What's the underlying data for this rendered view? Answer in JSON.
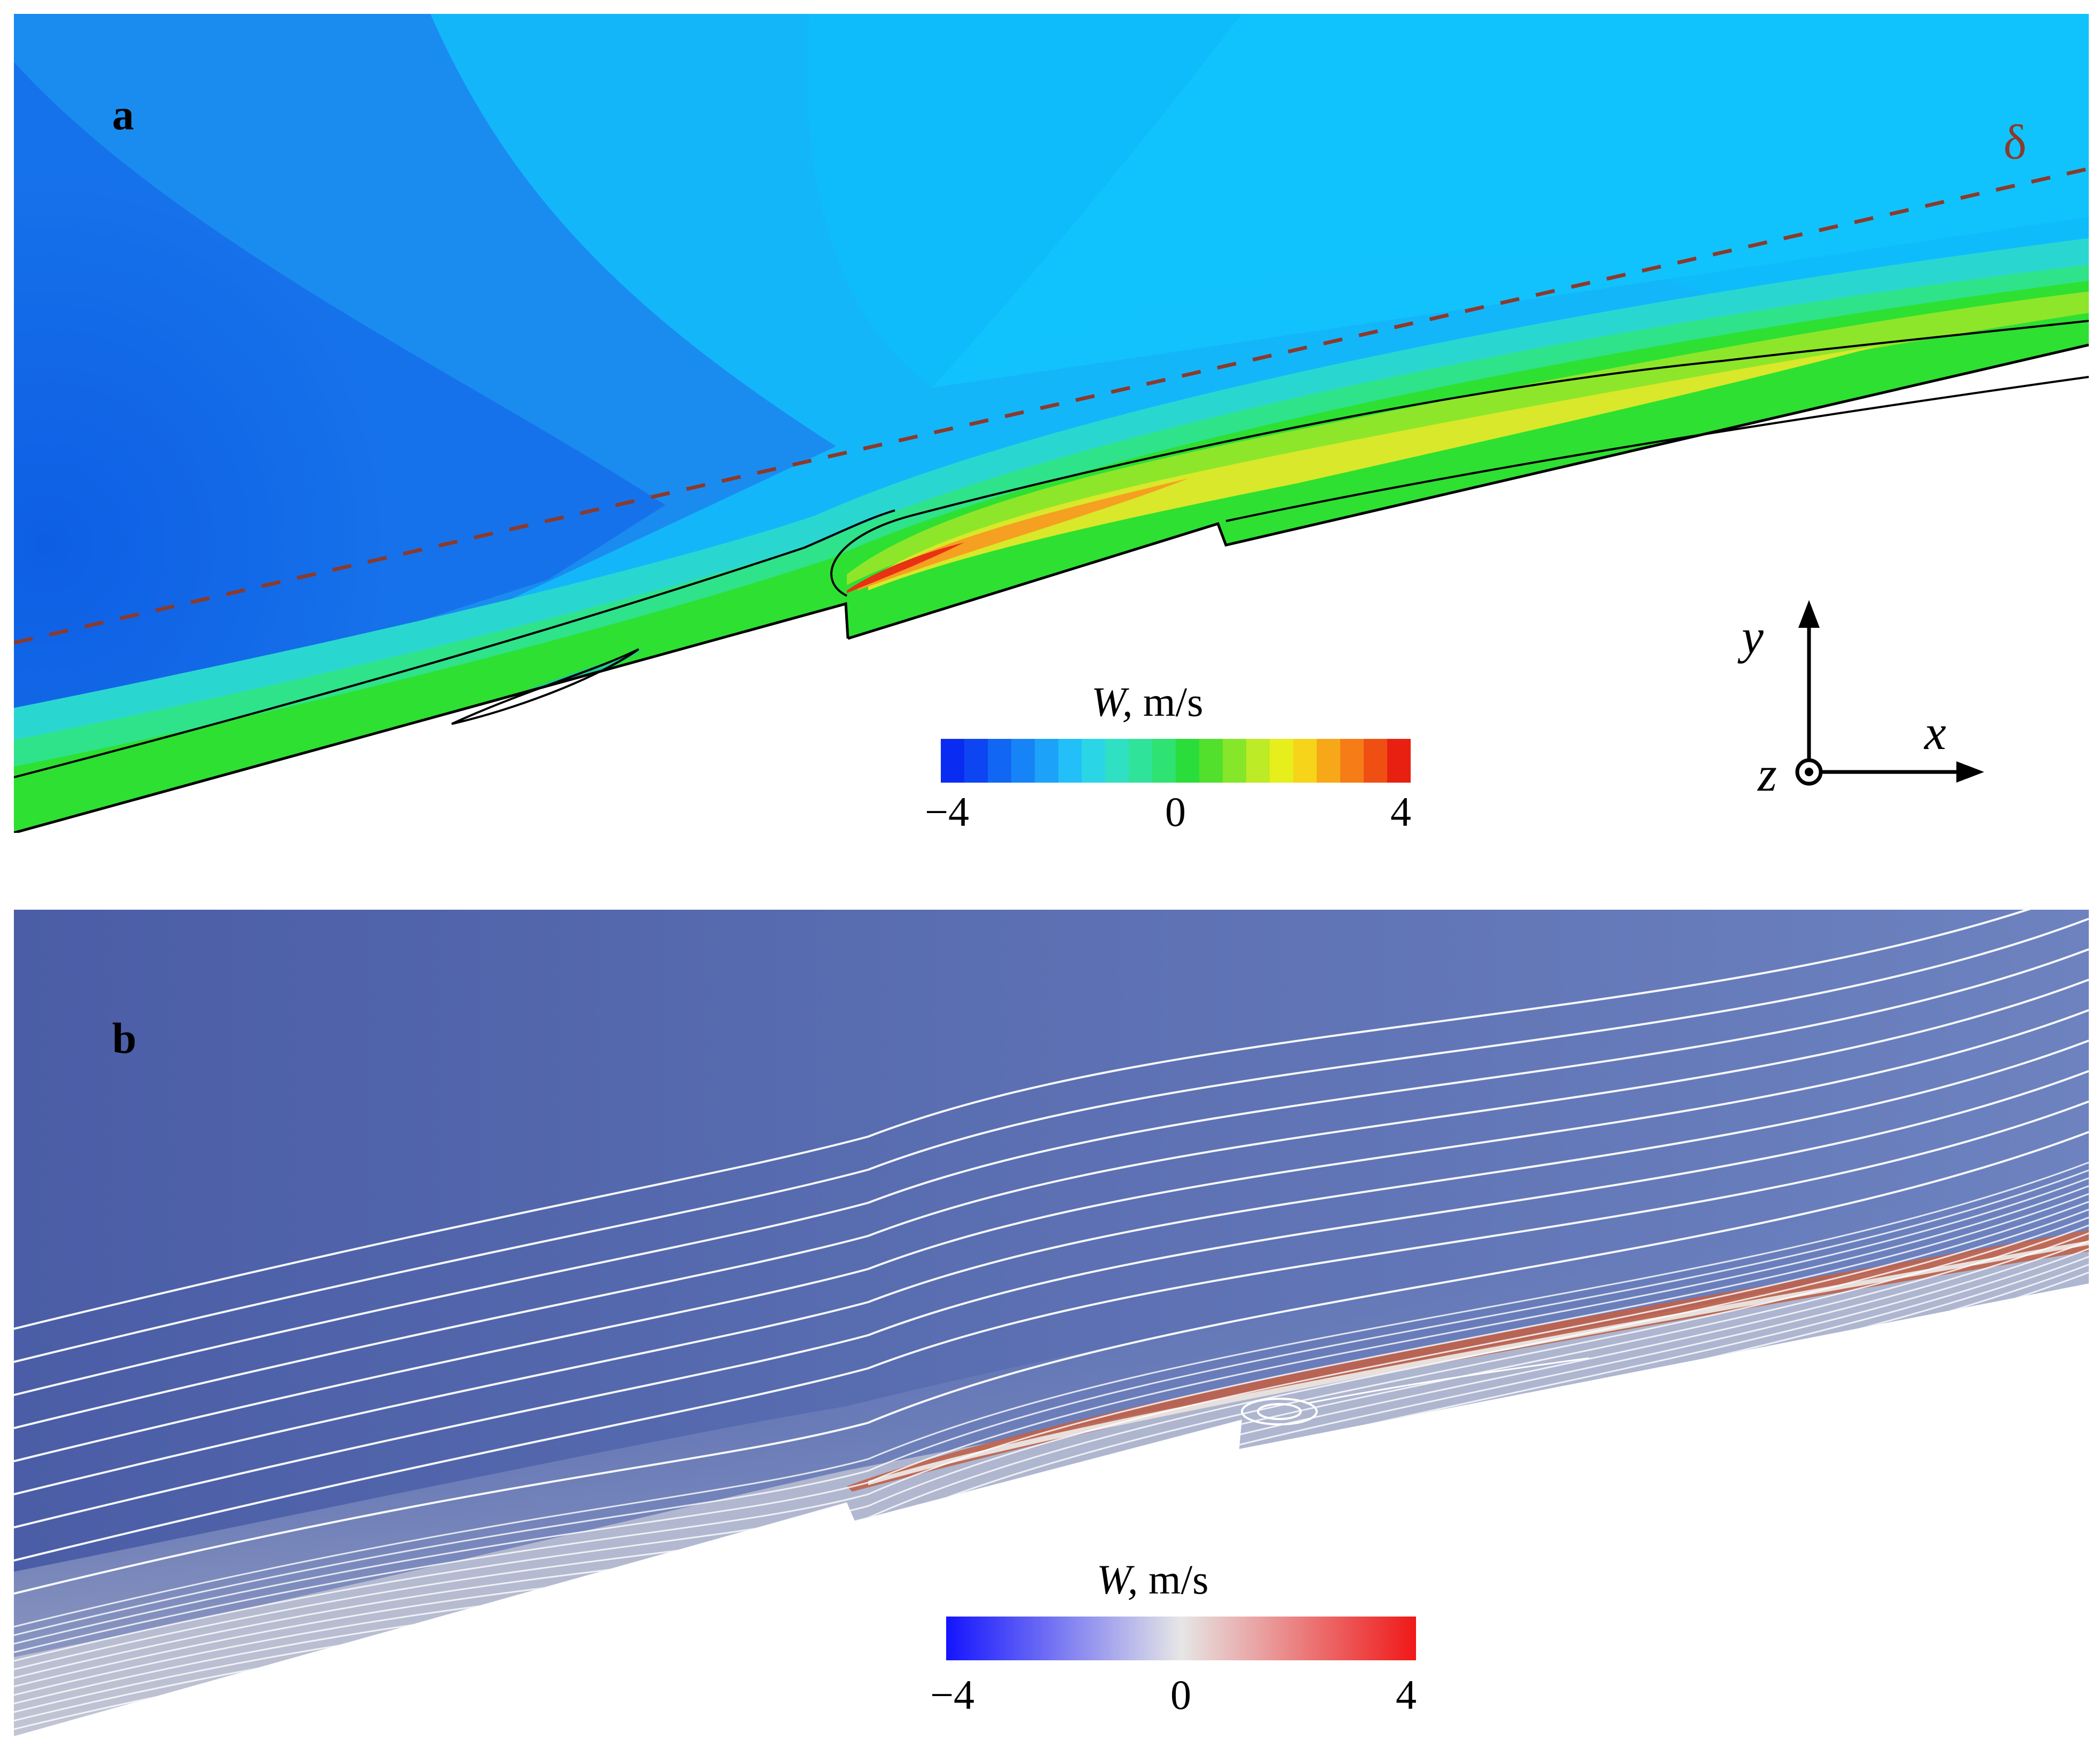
{
  "panel_a": {
    "letter": "a",
    "delta_label": "δ",
    "colorbar": {
      "variable": "W,",
      "unit": "m/s",
      "ticks": [
        "−4",
        "0",
        "4"
      ],
      "range": [
        -4,
        4
      ],
      "levels": 20,
      "colors": [
        "#0a2cf2",
        "#0d45f2",
        "#1166f4",
        "#1684f6",
        "#1ca2f8",
        "#22bff9",
        "#2ad6e6",
        "#2fe0c2",
        "#2fe39a",
        "#2ee372",
        "#2bdd3a",
        "#52e02c",
        "#86e62a",
        "#bdeb26",
        "#e6ef1c",
        "#f6d41a",
        "#f7a818",
        "#f57c16",
        "#f04f14",
        "#e82012"
      ]
    },
    "axes_triad": {
      "x": "x",
      "y": "y",
      "z": "z"
    },
    "field_colors": {
      "deep_blue": "#1270e6",
      "mid_blue": "#1a8cf0",
      "light_blue": "#14b0f8",
      "cyan": "#13c3fb",
      "green": "#2ee032",
      "yellow": "#d9e82a",
      "orange": "#f5a020",
      "red": "#e83214",
      "delta_line": "#8b3a2c"
    }
  },
  "panel_b": {
    "letter": "b",
    "colorbar": {
      "variable": "W,",
      "unit": "m/s",
      "ticks": [
        "−4",
        "0",
        "4"
      ],
      "range": [
        -4,
        4
      ],
      "colors": [
        "#1414ff",
        "#e6e6e6",
        "#f01818"
      ]
    },
    "field_colors": {
      "background_left": "#4a60a8",
      "background_right": "#6d82bf",
      "shear_layer": "#c0624a",
      "streamline": "#ffffff"
    }
  }
}
